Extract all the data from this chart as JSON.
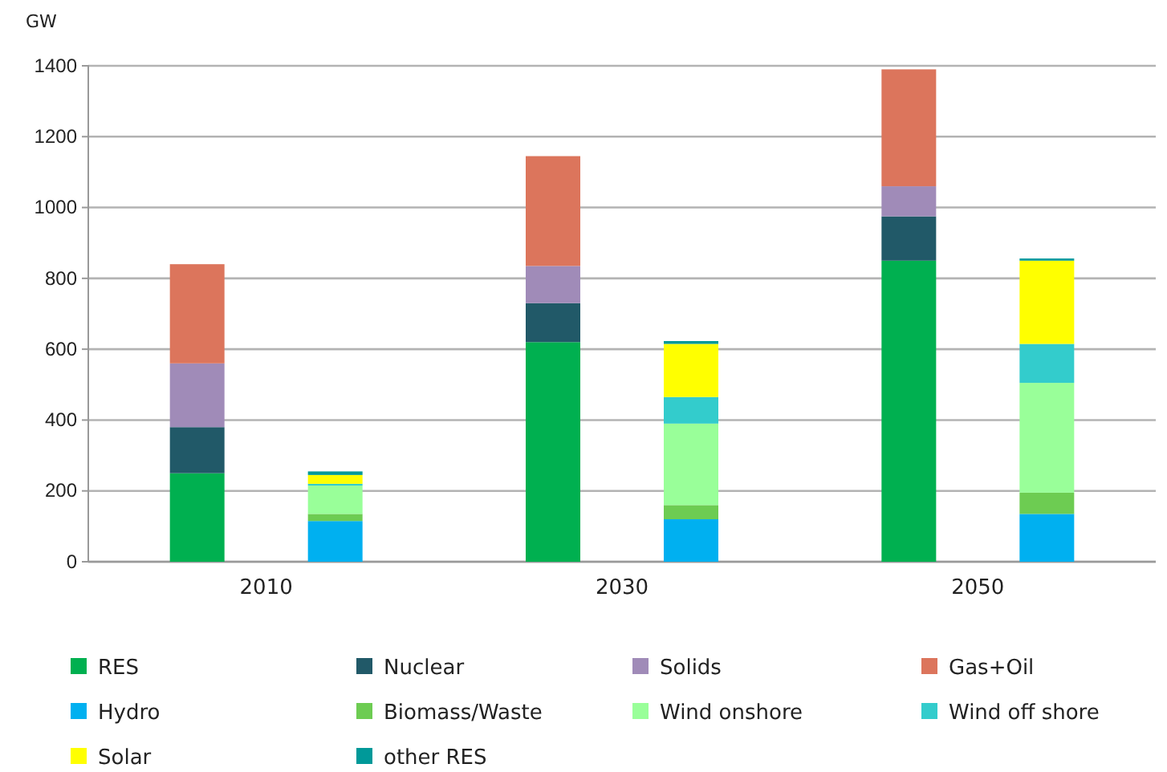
{
  "chart_data": {
    "type": "bar",
    "stacked": true,
    "ylabel": "GW",
    "categories": [
      null,
      "2010",
      null,
      null,
      "2030",
      null,
      null,
      "2050",
      null
    ],
    "ylim": [
      0,
      1400
    ],
    "yticks": [
      0,
      200,
      400,
      600,
      800,
      1000,
      1200,
      1400
    ],
    "grid": "y",
    "legend": "bottom",
    "series": [
      {
        "name": "RES",
        "color": "#00b050",
        "values": [
          250,
          null,
          null,
          620,
          null,
          null,
          850,
          null,
          null
        ]
      },
      {
        "name": "Nuclear",
        "color": "#215968",
        "values": [
          130,
          null,
          null,
          110,
          null,
          null,
          125,
          null,
          null
        ]
      },
      {
        "name": "Solids",
        "color": "#a08bb8",
        "values": [
          180,
          null,
          null,
          105,
          null,
          null,
          85,
          null,
          null
        ]
      },
      {
        "name": "Gas+Oil",
        "color": "#dc755c",
        "values": [
          280,
          null,
          null,
          310,
          null,
          null,
          330,
          null,
          null
        ]
      },
      {
        "name": "Hydro",
        "color": "#00b0f0",
        "values": [
          null,
          null,
          115,
          null,
          null,
          120,
          null,
          null,
          135
        ]
      },
      {
        "name": "Biomass/Waste",
        "color": "#6dcc52",
        "values": [
          null,
          null,
          20,
          null,
          null,
          40,
          null,
          null,
          60
        ]
      },
      {
        "name": "Wind onshore",
        "color": "#99ff99",
        "values": [
          null,
          null,
          80,
          null,
          null,
          230,
          null,
          null,
          310
        ]
      },
      {
        "name": "Wind off shore",
        "color": "#33cccc",
        "values": [
          null,
          null,
          5,
          null,
          null,
          75,
          null,
          null,
          110
        ]
      },
      {
        "name": "Solar",
        "color": "#ffff00",
        "values": [
          null,
          null,
          25,
          null,
          null,
          150,
          null,
          null,
          235
        ]
      },
      {
        "name": "other RES",
        "color": "#009999",
        "values": [
          null,
          null,
          10,
          null,
          null,
          8,
          null,
          null,
          6
        ]
      }
    ]
  }
}
